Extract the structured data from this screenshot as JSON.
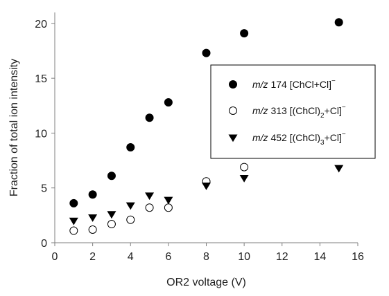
{
  "chart_data": {
    "type": "scatter",
    "title": "",
    "xlabel": "OR2 voltage (V)",
    "ylabel": "Fraction of total ion intensity",
    "xlim": [
      0,
      16
    ],
    "ylim": [
      0,
      21
    ],
    "xticks": [
      0,
      2,
      4,
      6,
      8,
      10,
      12,
      14,
      16
    ],
    "yticks": [
      0,
      5,
      10,
      15,
      20
    ],
    "grid": false,
    "legend_position": "right",
    "series": [
      {
        "name": "m/z 174 [ChCl+Cl]⁻",
        "legend": {
          "mz": "m/z",
          "text": " 174 [ChCl+Cl]",
          "sub": "",
          "tail": "",
          "sup": "−"
        },
        "marker": "filled-circle",
        "color": "#000000",
        "x": [
          1,
          2,
          3,
          4,
          5,
          6,
          8,
          10,
          15
        ],
        "y": [
          3.6,
          4.4,
          6.1,
          8.7,
          11.4,
          12.8,
          17.3,
          19.1,
          20.1
        ]
      },
      {
        "name": "m/z 313 [(ChCl)₂+Cl]⁻",
        "legend": {
          "mz": "m/z",
          "text": " 313 [(ChCl)",
          "sub": "2",
          "tail": "+Cl]",
          "sup": "−"
        },
        "marker": "open-circle",
        "color": "#000000",
        "x": [
          1,
          2,
          3,
          4,
          5,
          6,
          8,
          10
        ],
        "y": [
          1.1,
          1.2,
          1.7,
          2.1,
          3.2,
          3.2,
          5.6,
          6.9
        ]
      },
      {
        "name": "m/z 452 [(ChCl)₃+Cl]⁻",
        "legend": {
          "mz": "m/z",
          "text": " 452  [(ChCl)",
          "sub": "3",
          "tail": "+Cl]",
          "sup": "−"
        },
        "marker": "filled-triangle-down",
        "color": "#000000",
        "x": [
          1,
          2,
          3,
          4,
          5,
          6,
          8,
          10,
          15
        ],
        "y": [
          2.0,
          2.3,
          2.6,
          3.4,
          4.3,
          3.9,
          5.2,
          5.9,
          6.8
        ]
      }
    ]
  }
}
